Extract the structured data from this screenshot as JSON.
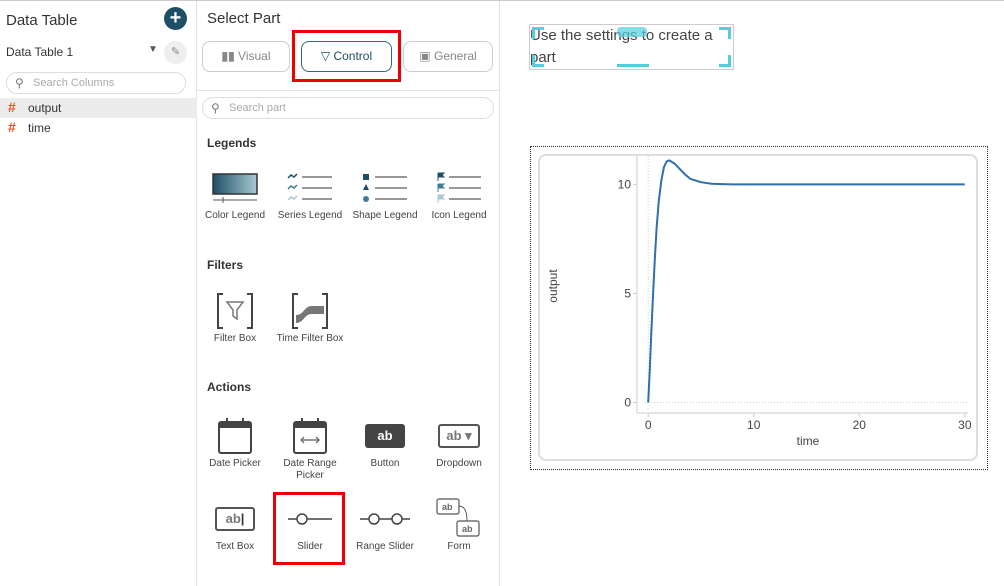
{
  "left": {
    "title": "Data Table",
    "table_name": "Data Table 1",
    "search_placeholder": "Search Columns",
    "columns": [
      {
        "name": "output",
        "type": "numeric"
      },
      {
        "name": "time",
        "type": "numeric"
      }
    ]
  },
  "mid": {
    "title": "Select Part",
    "tabs": [
      {
        "label": "Visual",
        "icon": "bar-chart-icon"
      },
      {
        "label": "Control",
        "icon": "filter-icon",
        "active": true
      },
      {
        "label": "General",
        "icon": "image-icon"
      }
    ],
    "search_placeholder": "Search part",
    "sections": {
      "legends": "Legends",
      "filters": "Filters",
      "actions": "Actions"
    },
    "legends": [
      "Color Legend",
      "Series Legend",
      "Shape Legend",
      "Icon Legend"
    ],
    "filters": [
      "Filter Box",
      "Time Filter Box"
    ],
    "actions": [
      "Date Picker",
      "Date Range Picker",
      "Button",
      "Dropdown",
      "Text Box",
      "Slider",
      "Range Slider",
      "Form"
    ],
    "icon_text": "ab"
  },
  "canvas": {
    "placeholder": "Use the settings to create a part"
  },
  "colors": {
    "accent": "#1e4f66",
    "highlight": "#e00000",
    "line": "#2f6fad",
    "hash": "#f04e23"
  },
  "chart_data": {
    "type": "line",
    "xlabel": "time",
    "ylabel": "output",
    "xlim": [
      -0.3,
      30.3
    ],
    "ylim": [
      -0.3,
      11.3
    ],
    "xticks": [
      0,
      10,
      20,
      30
    ],
    "yticks": [
      0,
      5,
      10
    ],
    "x": [
      0,
      0.15,
      0.3,
      0.45,
      0.6,
      0.8,
      1,
      1.25,
      1.5,
      1.75,
      2,
      2.5,
      3,
      3.5,
      4,
      5,
      6,
      7,
      8,
      9,
      30
    ],
    "y": [
      0,
      1.5,
      3.2,
      4.8,
      6.3,
      8,
      9.2,
      10.2,
      10.8,
      11.05,
      11.1,
      10.95,
      10.7,
      10.45,
      10.25,
      10.1,
      10.03,
      10.01,
      10,
      10,
      10
    ]
  }
}
